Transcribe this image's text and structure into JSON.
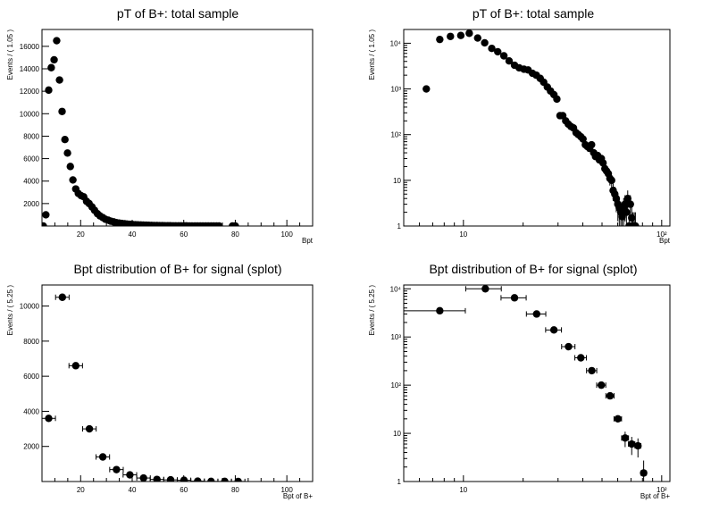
{
  "chart_data": [
    {
      "type": "scatter",
      "title": "pT of B+: total sample",
      "xlabel": "Bpt",
      "ylabel": "Events / ( 1.05 )",
      "xscale": "linear",
      "yscale": "linear",
      "xlim": [
        5,
        110
      ],
      "ylim": [
        0,
        17500
      ],
      "xticks": [
        "20",
        "40",
        "60",
        "80",
        "100"
      ],
      "xtick_values": [
        20,
        40,
        60,
        80,
        100
      ],
      "yticks": [
        "2000",
        "4000",
        "6000",
        "8000",
        "10000",
        "12000",
        "14000",
        "16000"
      ],
      "ytick_values": [
        2000,
        4000,
        6000,
        8000,
        10000,
        12000,
        14000,
        16000
      ],
      "grid": false,
      "marker": "circle",
      "x": [
        5.5,
        6.5,
        7.6,
        8.6,
        9.7,
        10.7,
        11.8,
        12.8,
        13.9,
        14.9,
        16.0,
        17.0,
        18.1,
        19.1,
        20.2,
        21.2,
        22.3,
        23.3,
        24.4,
        25.4,
        26.5,
        27.5,
        28.6,
        29.6,
        30.7,
        31.7,
        32.8,
        33.8,
        34.9,
        35.9,
        37.0,
        38.0,
        39.1,
        40.1,
        41.2,
        42.2,
        43.3,
        44.3,
        45.4,
        46.4,
        47.5,
        48.5,
        49.6,
        50.6,
        51.7,
        52.7,
        53.8,
        54.8,
        55.9,
        56.9,
        58.0,
        59.0,
        60.1,
        61.1,
        62.2,
        63.2,
        64.3,
        65.3,
        66.4,
        67.4,
        68.5,
        69.5,
        70.6,
        71.6,
        72.7,
        73.7,
        78.9,
        80.0
      ],
      "y": [
        3,
        1000,
        12100,
        14100,
        14800,
        16500,
        13000,
        10200,
        7700,
        6500,
        5300,
        4100,
        3300,
        2900,
        2700,
        2600,
        2200,
        2000,
        1700,
        1400,
        1100,
        900,
        750,
        600,
        520,
        430,
        370,
        300,
        260,
        230,
        200,
        170,
        150,
        130,
        110,
        100,
        90,
        80,
        70,
        60,
        55,
        48,
        42,
        36,
        32,
        28,
        25,
        22,
        18,
        16,
        14,
        12,
        10,
        9,
        8,
        7,
        6,
        5,
        4.5,
        4,
        3.5,
        3,
        2.5,
        2,
        1.5,
        1.2,
        1,
        1
      ]
    },
    {
      "type": "scatter",
      "title": "pT of B+: total sample",
      "xlabel": "Bpt",
      "ylabel": "Events / ( 1.05 )",
      "xscale": "log",
      "yscale": "log",
      "xlim": [
        5,
        110
      ],
      "ylim": [
        1,
        20000
      ],
      "xticks": [
        "10",
        "10²"
      ],
      "xtick_values": [
        10,
        100
      ],
      "yticks": [
        "1",
        "10",
        "10²",
        "10³",
        "10⁴"
      ],
      "ytick_values": [
        1,
        10,
        100,
        1000,
        10000
      ],
      "grid": false,
      "marker": "circle",
      "x": [
        6.5,
        7.6,
        8.6,
        9.7,
        10.7,
        11.8,
        12.8,
        13.9,
        14.9,
        16.0,
        17.0,
        18.1,
        19.1,
        20.2,
        21.2,
        22.3,
        23.3,
        24.4,
        25.4,
        26.5,
        27.5,
        28.6,
        29.6,
        30.7,
        31.7,
        32.8,
        33.8,
        34.9,
        35.9,
        37.0,
        38.0,
        39.1,
        40.1,
        41.2,
        42.2,
        43.3,
        44.3,
        45.4,
        46.4,
        47.5,
        48.5,
        49.6,
        50.6,
        51.7,
        52.7,
        53.8,
        54.8,
        55.9,
        56.9,
        58.0,
        59.0,
        60.1,
        61.1,
        62.2,
        63.2,
        64.3,
        65.3,
        66.4,
        67.4,
        68.5,
        69.5,
        70.6,
        71.6,
        72.7,
        73.7
      ],
      "y": [
        1000,
        12100,
        14100,
        14800,
        16500,
        13000,
        10200,
        7700,
        6500,
        5300,
        4100,
        3300,
        2900,
        2700,
        2600,
        2200,
        2000,
        1700,
        1400,
        1100,
        900,
        750,
        600,
        260,
        260,
        200,
        170,
        150,
        140,
        110,
        100,
        90,
        80,
        60,
        55,
        50,
        60,
        40,
        33,
        35,
        28,
        30,
        24,
        18,
        16,
        14,
        11,
        10,
        6,
        5,
        4,
        3,
        2.5,
        2,
        1.6,
        2.5,
        3,
        2,
        4,
        1,
        3,
        1.5,
        1,
        1,
        1
      ]
    },
    {
      "type": "scatter",
      "title": "Bpt distribution of B+ for signal (splot)",
      "xlabel": "Bpt of B+",
      "ylabel": "Events / ( 5.25 )",
      "xscale": "linear",
      "yscale": "linear",
      "xlim": [
        5,
        110
      ],
      "ylim": [
        0,
        11200
      ],
      "xticks": [
        "20",
        "40",
        "60",
        "80",
        "100"
      ],
      "xtick_values": [
        20,
        40,
        60,
        80,
        100
      ],
      "yticks": [
        "2000",
        "4000",
        "6000",
        "8000",
        "10000"
      ],
      "ytick_values": [
        2000,
        4000,
        6000,
        8000,
        10000
      ],
      "grid": false,
      "marker": "circle",
      "x": [
        7.6,
        12.9,
        18.1,
        23.4,
        28.6,
        33.9,
        39.1,
        44.4,
        49.6,
        54.9,
        60.1,
        65.4,
        70.6,
        75.9,
        81.1
      ],
      "y": [
        3600,
        10500,
        6600,
        3000,
        1400,
        680,
        380,
        200,
        120,
        95,
        70,
        20,
        8,
        6,
        5.5
      ]
    },
    {
      "type": "scatter",
      "title": "Bpt distribution of B+ for signal (splot)",
      "xlabel": "Bpt of B+",
      "ylabel": "Events / ( 5.25 )",
      "xscale": "log",
      "yscale": "log",
      "xlim": [
        5,
        110
      ],
      "ylim": [
        1,
        12000
      ],
      "xticks": [
        "10",
        "10²"
      ],
      "xtick_values": [
        10,
        100
      ],
      "yticks": [
        "1",
        "10",
        "10²",
        "10³",
        "10⁴"
      ],
      "ytick_values": [
        1,
        10,
        100,
        1000,
        10000
      ],
      "grid": false,
      "marker": "circle",
      "x": [
        7.6,
        12.9,
        18.1,
        23.4,
        28.6,
        33.9,
        39.1,
        44.4,
        49.6,
        54.9,
        60.1,
        65.4,
        70.6,
        75.9,
        81.1
      ],
      "y": [
        3500,
        10000,
        6500,
        3000,
        1400,
        630,
        370,
        200,
        100,
        60,
        20,
        8,
        6,
        5.5,
        1.5
      ]
    }
  ]
}
